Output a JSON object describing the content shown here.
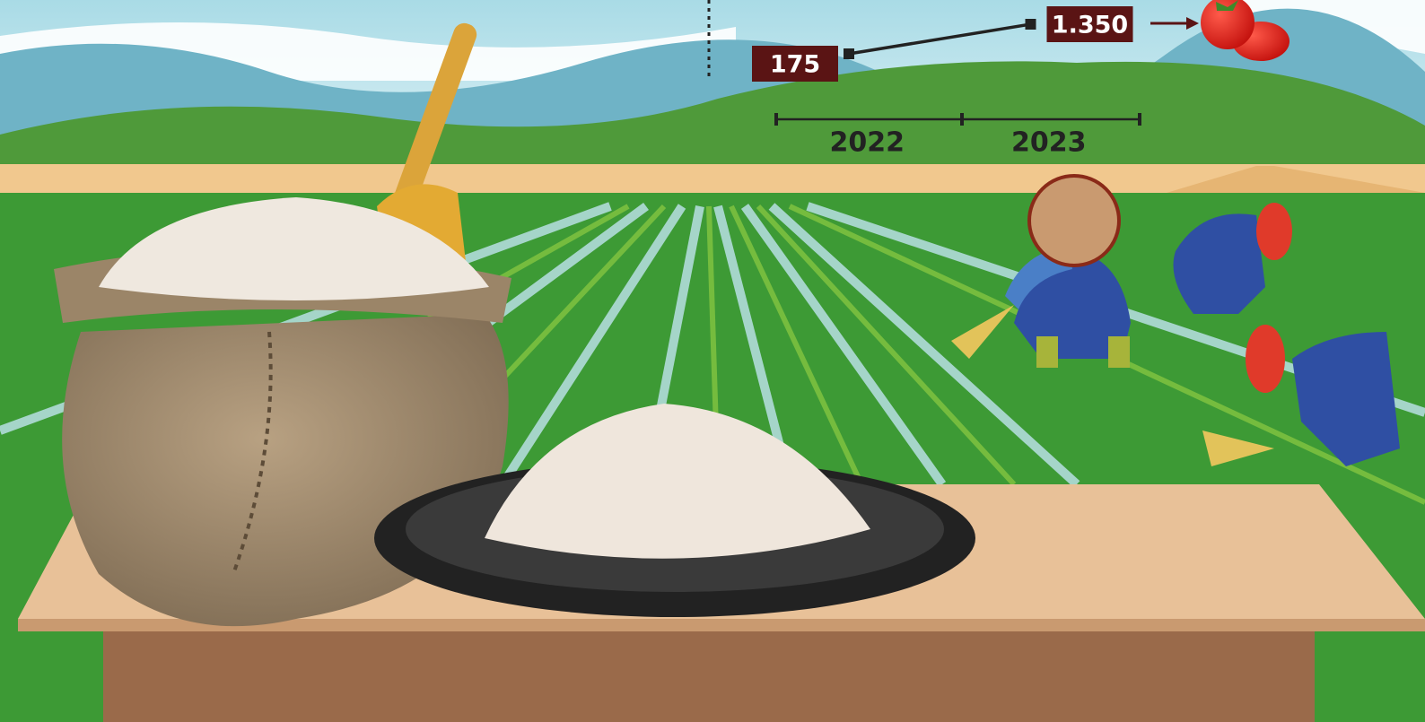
{
  "chart_data": {
    "type": "line",
    "categories": [
      "2022",
      "2023"
    ],
    "values": [
      175,
      1350
    ],
    "value_labels": [
      "175",
      "1.350"
    ],
    "color": "#222222",
    "label_color": "#5a1414"
  }
}
